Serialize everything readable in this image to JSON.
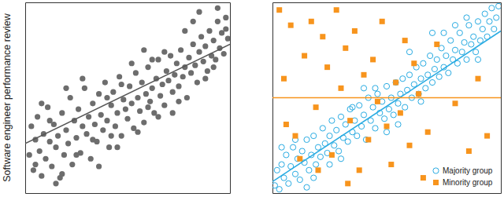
{
  "chart_data": [
    {
      "type": "scatter",
      "y_label": "Software engineer performance review",
      "xlim": [
        0,
        100
      ],
      "ylim": [
        0,
        100
      ],
      "tick_labels": false,
      "series": [
        {
          "type": "scatter",
          "color": "#6d6d6d",
          "marker": "circle",
          "x": [
            2,
            3,
            4,
            5,
            6,
            7,
            8,
            9,
            10,
            11,
            12,
            13,
            14,
            15,
            16,
            17,
            18,
            19,
            20,
            21,
            22,
            23,
            24,
            25,
            26,
            27,
            28,
            29,
            30,
            31,
            32,
            33,
            34,
            35,
            36,
            37,
            38,
            39,
            40,
            41,
            42,
            43,
            44,
            45,
            46,
            47,
            48,
            49,
            50,
            51,
            52,
            53,
            54,
            55,
            56,
            57,
            58,
            59,
            60,
            61,
            62,
            63,
            64,
            65,
            66,
            67,
            68,
            69,
            70,
            71,
            72,
            73,
            74,
            75,
            76,
            77,
            78,
            79,
            80,
            81,
            82,
            83,
            84,
            85,
            86,
            87,
            88,
            89,
            90,
            91,
            92,
            93,
            94,
            95,
            96,
            97,
            98,
            99,
            5,
            12,
            18,
            25,
            33,
            40,
            47,
            55,
            62,
            68,
            75,
            82,
            88,
            94,
            8,
            15,
            28,
            45,
            58,
            72,
            85,
            36,
            52,
            65,
            78,
            92,
            20,
            42,
            60,
            98
          ],
          "values": [
            20,
            35,
            12,
            28,
            40,
            22,
            9,
            31,
            18,
            45,
            27,
            14,
            36,
            24,
            30,
            8,
            42,
            20,
            33,
            26,
            50,
            15,
            38,
            29,
            44,
            21,
            35,
            55,
            31,
            40,
            18,
            47,
            36,
            27,
            52,
            41,
            33,
            58,
            38,
            24,
            46,
            53,
            35,
            42,
            61,
            30,
            49,
            44,
            39,
            56,
            47,
            34,
            63,
            50,
            43,
            58,
            37,
            52,
            66,
            48,
            55,
            42,
            60,
            70,
            51,
            57,
            46,
            64,
            59,
            72,
            53,
            62,
            68,
            56,
            75,
            61,
            66,
            50,
            71,
            63,
            78,
            67,
            58,
            74,
            82,
            69,
            77,
            64,
            85,
            72,
            80,
            70,
            90,
            76,
            84,
            73,
            92,
            81,
            15,
            38,
            10,
            20,
            28,
            50,
            57,
            32,
            70,
            74,
            48,
            90,
            60,
            97,
            47,
            5,
            60,
            24,
            75,
            42,
            95,
            14,
            68,
            40,
            85,
            66,
            55,
            30,
            45,
            86
          ]
        },
        {
          "type": "line",
          "color": "#555555",
          "x": [
            0,
            100
          ],
          "values": [
            26,
            78
          ]
        }
      ]
    },
    {
      "type": "scatter",
      "xlim": [
        0,
        100
      ],
      "ylim": [
        0,
        100
      ],
      "tick_labels": false,
      "legend": "lower right",
      "series": [
        {
          "type": "scatter",
          "name": "Majority group",
          "color": "#29abe2",
          "marker": "open-circle",
          "x": [
            1,
            2,
            3,
            4,
            5,
            6,
            7,
            8,
            9,
            10,
            11,
            12,
            13,
            14,
            15,
            16,
            17,
            18,
            19,
            20,
            21,
            22,
            23,
            24,
            25,
            26,
            27,
            28,
            29,
            30,
            31,
            32,
            33,
            34,
            35,
            36,
            37,
            38,
            39,
            40,
            41,
            42,
            43,
            44,
            45,
            46,
            47,
            48,
            49,
            50,
            51,
            52,
            53,
            54,
            55,
            56,
            57,
            58,
            59,
            60,
            61,
            62,
            63,
            64,
            65,
            66,
            67,
            68,
            69,
            70,
            71,
            72,
            73,
            74,
            75,
            76,
            77,
            78,
            79,
            80,
            81,
            82,
            83,
            84,
            85,
            86,
            87,
            88,
            89,
            90,
            91,
            92,
            93,
            94,
            95,
            96,
            97,
            98,
            99,
            4,
            10,
            18,
            25,
            35,
            45,
            55,
            65,
            75,
            85,
            15,
            30,
            50,
            60,
            70,
            80,
            90,
            40
          ],
          "values": [
            4,
            12,
            2,
            15,
            8,
            20,
            5,
            14,
            24,
            10,
            18,
            7,
            22,
            16,
            28,
            12,
            20,
            30,
            15,
            24,
            19,
            34,
            26,
            21,
            30,
            38,
            25,
            33,
            22,
            40,
            29,
            36,
            27,
            44,
            32,
            38,
            30,
            46,
            35,
            41,
            28,
            50,
            38,
            45,
            34,
            52,
            42,
            48,
            39,
            56,
            44,
            50,
            41,
            58,
            47,
            52,
            60,
            45,
            54,
            62,
            50,
            57,
            66,
            52,
            60,
            68,
            55,
            62,
            72,
            58,
            65,
            70,
            61,
            76,
            66,
            72,
            63,
            80,
            70,
            75,
            68,
            84,
            74,
            79,
            70,
            88,
            78,
            82,
            74,
            90,
            80,
            86,
            94,
            82,
            90,
            97,
            86,
            92,
            98,
            24,
            28,
            8,
            15,
            45,
            55,
            36,
            48,
            84,
            92,
            3,
            18,
            32,
            74,
            84,
            88,
            70,
            55
          ]
        },
        {
          "type": "scatter",
          "name": "Minority group",
          "color": "#f7941d",
          "marker": "square",
          "x": [
            3,
            5,
            8,
            10,
            12,
            14,
            17,
            19,
            22,
            24,
            26,
            28,
            30,
            32,
            34,
            36,
            38,
            40,
            42,
            44,
            46,
            48,
            50,
            52,
            54,
            56,
            58,
            60,
            64,
            68,
            72,
            66,
            80,
            86,
            94,
            6,
            20,
            33,
            62,
            90
          ],
          "values": [
            96,
            60,
            88,
            30,
            18,
            72,
            90,
            45,
            82,
            66,
            20,
            96,
            55,
            76,
            38,
            85,
            12,
            62,
            28,
            70,
            48,
            90,
            35,
            15,
            58,
            42,
            80,
            25,
            52,
            32,
            78,
            8,
            47,
            22,
            30,
            36,
            12,
            5,
            68,
            60
          ]
        },
        {
          "type": "line",
          "color": "#29abe2",
          "x": [
            0,
            100
          ],
          "values": [
            6,
            85
          ]
        },
        {
          "type": "line",
          "color": "#f7941d",
          "x": [
            0,
            100
          ],
          "values": [
            50,
            50
          ]
        }
      ]
    }
  ]
}
